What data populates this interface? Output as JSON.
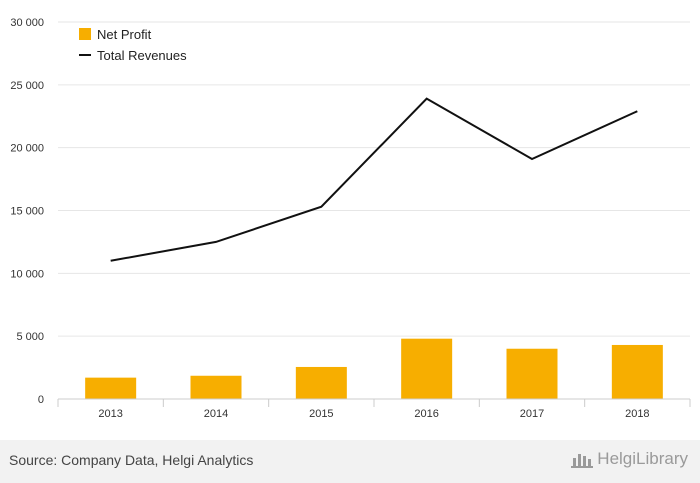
{
  "chart_data": {
    "type": "bar",
    "categories": [
      "2013",
      "2014",
      "2015",
      "2016",
      "2017",
      "2018"
    ],
    "series": [
      {
        "name": "Net Profit",
        "kind": "bar",
        "color": "#f7ae00",
        "values": [
          1700,
          1850,
          2550,
          4800,
          4000,
          4300
        ]
      },
      {
        "name": "Total Revenues",
        "kind": "line",
        "color": "#111111",
        "values": [
          11000,
          12500,
          15300,
          23900,
          19100,
          22900
        ]
      }
    ],
    "ylim": [
      0,
      30000
    ],
    "yticks": [
      0,
      5000,
      10000,
      15000,
      20000,
      25000,
      30000
    ],
    "ytick_labels": [
      "0",
      "5 000",
      "10 000",
      "15 000",
      "20 000",
      "25 000",
      "30 000"
    ],
    "title": "",
    "xlabel": "",
    "ylabel": "",
    "legend_position": "top-left",
    "grid": true
  },
  "footer": {
    "source": "Source: Company Data, Helgi Analytics",
    "brand": "HelgiLibrary"
  },
  "colors": {
    "grid": "#e6e6e6",
    "axis": "#cccccc"
  }
}
